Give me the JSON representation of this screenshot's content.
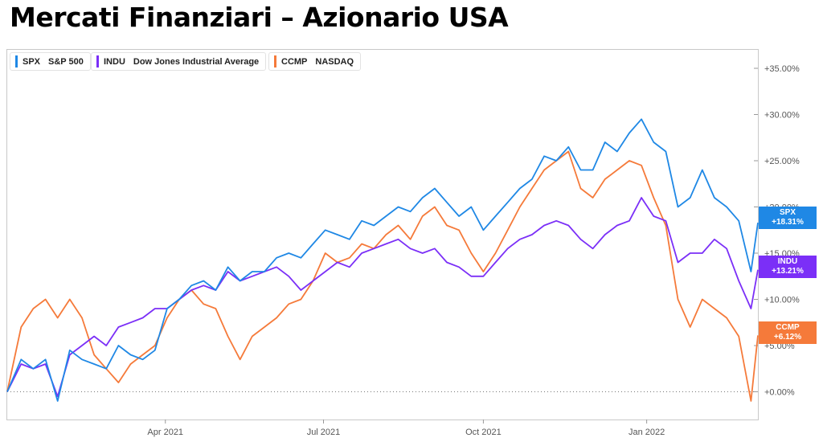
{
  "page": {
    "title": "Mercati Finanziari – Azionario USA"
  },
  "colors": {
    "SPX": "#1f88e5",
    "INDU": "#7b2ff7",
    "CCMP": "#f57a3a",
    "axis": "#555555",
    "grid": "#c8c8c8"
  },
  "legend": [
    {
      "code": "SPX",
      "name": "S&P 500"
    },
    {
      "code": "INDU",
      "name": "Dow Jones Industrial Average"
    },
    {
      "code": "CCMP",
      "name": "NASDAQ"
    }
  ],
  "value_tags": [
    {
      "code": "SPX",
      "value": "+18.31%"
    },
    {
      "code": "INDU",
      "value": "+13.21%"
    },
    {
      "code": "CCMP",
      "value": "+6.12%"
    }
  ],
  "chart_data": {
    "type": "line",
    "title": "",
    "xlabel": "",
    "ylabel": "",
    "x_ticks": [
      "Apr 2021",
      "Jul 2021",
      "Oct 2021",
      "Jan 2022"
    ],
    "x_tick_dates": [
      "2021-04-01",
      "2021-07-01",
      "2021-10-01",
      "2022-01-03"
    ],
    "xlim": [
      "2020-12-31",
      "2022-03-08"
    ],
    "y_ticks": [
      "+0.00%",
      "+5.00%",
      "+10.00%",
      "+15.00%",
      "+20.00%",
      "+25.00%",
      "+30.00%",
      "+35.00%"
    ],
    "y_tick_values": [
      0,
      5,
      10,
      15,
      20,
      25,
      30,
      35
    ],
    "ylim": [
      -3,
      37
    ],
    "unit": "%",
    "grid": false,
    "baseline_dotted_at": 0,
    "legend_position": "top-left",
    "x": [
      "2020-12-31",
      "2021-01-08",
      "2021-01-15",
      "2021-01-22",
      "2021-01-29",
      "2021-02-05",
      "2021-02-12",
      "2021-02-19",
      "2021-02-26",
      "2021-03-05",
      "2021-03-12",
      "2021-03-19",
      "2021-03-26",
      "2021-04-02",
      "2021-04-09",
      "2021-04-16",
      "2021-04-23",
      "2021-04-30",
      "2021-05-07",
      "2021-05-14",
      "2021-05-21",
      "2021-05-28",
      "2021-06-04",
      "2021-06-11",
      "2021-06-18",
      "2021-06-25",
      "2021-07-02",
      "2021-07-09",
      "2021-07-16",
      "2021-07-23",
      "2021-07-30",
      "2021-08-06",
      "2021-08-13",
      "2021-08-20",
      "2021-08-27",
      "2021-09-03",
      "2021-09-10",
      "2021-09-17",
      "2021-09-24",
      "2021-10-01",
      "2021-10-08",
      "2021-10-15",
      "2021-10-22",
      "2021-10-29",
      "2021-11-05",
      "2021-11-12",
      "2021-11-19",
      "2021-11-26",
      "2021-12-03",
      "2021-12-10",
      "2021-12-17",
      "2021-12-24",
      "2021-12-31",
      "2022-01-07",
      "2022-01-14",
      "2022-01-21",
      "2022-01-28",
      "2022-02-04",
      "2022-02-11",
      "2022-02-18",
      "2022-02-25",
      "2022-03-04",
      "2022-03-08"
    ],
    "series": [
      {
        "name": "S&P 500",
        "code": "SPX",
        "values": [
          0,
          3.5,
          2.5,
          3.5,
          -1,
          4.5,
          3.5,
          3,
          2.5,
          5,
          4,
          3.5,
          4.5,
          9,
          10,
          11.5,
          12,
          11,
          13.5,
          12,
          13,
          13,
          14.5,
          15,
          14.5,
          16,
          17.5,
          17,
          16.5,
          18.5,
          18,
          19,
          20,
          19.5,
          21,
          22,
          20.5,
          19,
          20,
          17.5,
          19,
          20.5,
          22,
          23,
          25.5,
          25,
          26.5,
          24,
          24,
          27,
          26,
          28,
          29.5,
          27,
          26,
          20,
          21,
          24,
          21,
          20,
          18.5,
          13,
          18.3
        ]
      },
      {
        "name": "Dow Jones Industrial Average",
        "code": "INDU",
        "values": [
          0,
          3,
          2.5,
          3,
          -0.5,
          4,
          5,
          6,
          5,
          7,
          7.5,
          8,
          9,
          9,
          10,
          11,
          11.5,
          11,
          13,
          12,
          12.5,
          13,
          13.5,
          12.5,
          11,
          12,
          13,
          14,
          13.5,
          15,
          15.5,
          16,
          16.5,
          15.5,
          15,
          15.5,
          14,
          13.5,
          12.5,
          12.5,
          14,
          15.5,
          16.5,
          17,
          18,
          18.5,
          18,
          16.5,
          15.5,
          17,
          18,
          18.5,
          21,
          19,
          18.5,
          14,
          15,
          15,
          16.5,
          15.5,
          12,
          9,
          13.2
        ]
      },
      {
        "name": "NASDAQ",
        "code": "CCMP",
        "values": [
          0,
          7,
          9,
          10,
          8,
          10,
          8,
          4,
          2.5,
          1,
          3,
          4,
          5,
          8,
          10,
          11,
          9.5,
          9,
          6,
          3.5,
          6,
          7,
          8,
          9.5,
          10,
          12,
          15,
          14,
          14.5,
          16,
          15.5,
          17,
          18,
          16.5,
          19,
          20,
          18,
          17.5,
          15,
          13,
          15,
          17.5,
          20,
          22,
          24,
          25,
          26,
          22,
          21,
          23,
          24,
          25,
          24.5,
          21,
          18,
          10,
          7,
          10,
          9,
          8,
          6,
          -1,
          6.1
        ]
      }
    ]
  },
  "accessibility": {}
}
